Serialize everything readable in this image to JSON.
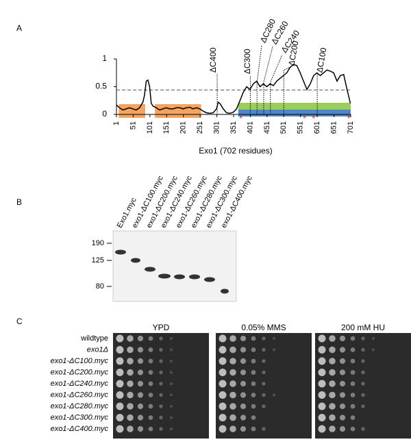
{
  "chart_data": {
    "type": "line",
    "panel_label": "A",
    "xlabel": "Exo1 (702 residues)",
    "xlim": [
      1,
      701
    ],
    "ylim": [
      0,
      1
    ],
    "yticks": [
      0,
      0.5,
      1
    ],
    "xticks": [
      1,
      51,
      101,
      151,
      201,
      251,
      301,
      351,
      401,
      451,
      501,
      551,
      601,
      651,
      701
    ],
    "threshold": 0.44,
    "x": [
      1,
      10,
      20,
      30,
      40,
      50,
      60,
      70,
      80,
      85,
      90,
      95,
      100,
      105,
      110,
      120,
      130,
      140,
      150,
      160,
      170,
      180,
      190,
      200,
      210,
      220,
      230,
      240,
      250,
      260,
      270,
      280,
      290,
      300,
      305,
      310,
      320,
      330,
      340,
      350,
      360,
      370,
      380,
      390,
      400,
      410,
      420,
      430,
      440,
      450,
      460,
      470,
      480,
      490,
      500,
      510,
      520,
      530,
      540,
      550,
      560,
      570,
      580,
      590,
      600,
      610,
      620,
      630,
      640,
      650,
      660,
      670,
      680,
      690,
      700
    ],
    "values": [
      0.17,
      0.12,
      0.08,
      0.1,
      0.12,
      0.1,
      0.08,
      0.12,
      0.22,
      0.35,
      0.6,
      0.62,
      0.5,
      0.2,
      0.15,
      0.12,
      0.08,
      0.1,
      0.12,
      0.1,
      0.1,
      0.12,
      0.12,
      0.1,
      0.12,
      0.13,
      0.1,
      0.12,
      0.1,
      0.06,
      0.03,
      0.02,
      0.03,
      0.1,
      0.22,
      0.2,
      0.1,
      0.03,
      0.02,
      0.04,
      0.1,
      0.25,
      0.4,
      0.5,
      0.45,
      0.55,
      0.6,
      0.5,
      0.55,
      0.5,
      0.55,
      0.52,
      0.6,
      0.65,
      0.7,
      0.75,
      0.85,
      0.9,
      0.88,
      0.75,
      0.6,
      0.45,
      0.55,
      0.7,
      0.75,
      0.7,
      0.75,
      0.8,
      0.78,
      0.75,
      0.6,
      0.7,
      0.72,
      0.45,
      0.2
    ],
    "truncations": [
      {
        "label": "ΔC400",
        "x": 302
      },
      {
        "label": "ΔC300",
        "x": 401
      },
      {
        "label": "ΔC280",
        "x": 421
      },
      {
        "label": "ΔC260",
        "x": 441
      },
      {
        "label": "ΔC240",
        "x": 461
      },
      {
        "label": "ΔC200",
        "x": 501
      },
      {
        "label": "ΔC100",
        "x": 601
      }
    ],
    "orange_regions": [
      [
        8,
        87
      ],
      [
        116,
        254
      ]
    ],
    "orange_color": "#f4a460",
    "green_region": [
      365,
      701
    ],
    "green_color": "#9acd5a",
    "blue_region": [
      365,
      701
    ],
    "blue_color": "#4f86c6",
    "asterisks": [
      373,
      563,
      590,
      695
    ]
  },
  "panel_b": {
    "panel_label": "B",
    "lanes": [
      "Exo1.myc",
      "exo1-ΔC100.myc",
      "exo1-ΔC200.myc",
      "exo1-ΔC240.myc",
      "exo1-ΔC260.myc",
      "exo1-ΔC280.myc",
      "exo1-ΔC300.myc",
      "exo1-ΔC400.myc"
    ],
    "markers": [
      190,
      125,
      80
    ]
  },
  "panel_c": {
    "panel_label": "C",
    "conditions": [
      "YPD",
      "0.05% MMS",
      "200 mM HU"
    ],
    "strains": [
      "wildtype",
      "exo1Δ",
      "exo1-ΔC100.myc",
      "exo1-ΔC200.myc",
      "exo1-ΔC240.myc",
      "exo1-ΔC260.myc",
      "exo1-ΔC280.myc",
      "exo1-ΔC300.myc",
      "exo1-ΔC400.myc"
    ]
  }
}
